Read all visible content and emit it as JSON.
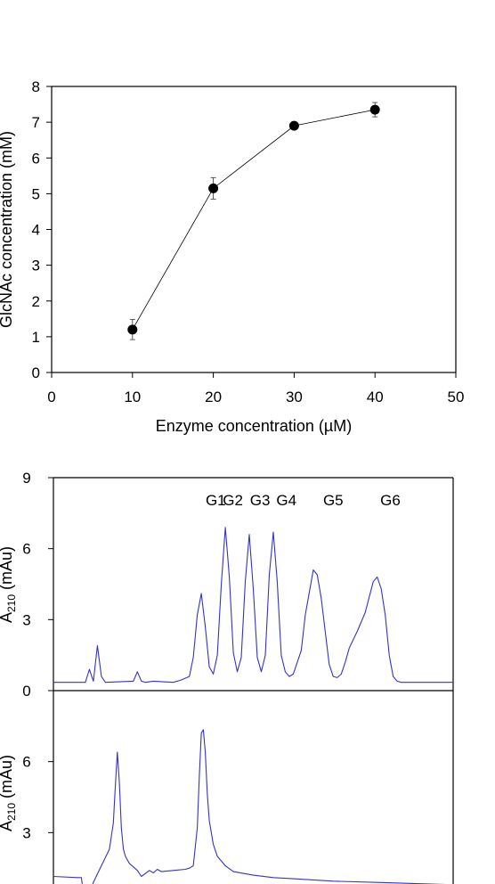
{
  "chart_data": [
    {
      "type": "scatter",
      "xlabel": "Enzyme concentration (µM)",
      "ylabel": "GlcNAc concentration (mM)",
      "xlim": [
        0,
        50
      ],
      "ylim": [
        0,
        8
      ],
      "xticks": [
        "0",
        "10",
        "20",
        "30",
        "40",
        "50"
      ],
      "yticks": [
        "0",
        "1",
        "2",
        "3",
        "4",
        "5",
        "6",
        "7",
        "8"
      ],
      "grid": false,
      "series": [
        {
          "x": [
            10,
            20,
            30,
            40
          ],
          "y": [
            1.2,
            5.15,
            6.9,
            7.35
          ],
          "err": [
            0.28,
            0.3,
            0.07,
            0.2
          ]
        }
      ],
      "colors": {
        "marker": "#000000",
        "line": "#000000"
      }
    },
    {
      "type": "line",
      "ylabel": "A210 (mAu)",
      "ylabel_main": "A",
      "ylabel_sub": "210",
      "ylabel_unit": " (mAu)",
      "ylim": [
        0,
        9
      ],
      "yticks": [
        "0",
        "3",
        "6",
        "9"
      ],
      "xlim": [
        0,
        100
      ],
      "grid": false,
      "peak_labels": [
        {
          "text": "G1",
          "x": 40.6
        },
        {
          "text": "G2",
          "x": 44.9
        },
        {
          "text": "G3",
          "x": 51.7
        },
        {
          "text": "G4",
          "x": 58.3
        },
        {
          "text": "G5",
          "x": 70.0
        },
        {
          "text": "G6",
          "x": 84.3
        }
      ],
      "series": [
        {
          "x": [
            0,
            8,
            9,
            10,
            11,
            12,
            13,
            20,
            21,
            22,
            23,
            25,
            30,
            32,
            34,
            35,
            36,
            37,
            38,
            39,
            40,
            41,
            42,
            43,
            44,
            45,
            46,
            47,
            48,
            49,
            50,
            51,
            52,
            53,
            54,
            55,
            56,
            57,
            58,
            59,
            60,
            62,
            63,
            65,
            66,
            67,
            68,
            69,
            70,
            71,
            72,
            73,
            74,
            76,
            78,
            80,
            81,
            82,
            83,
            84,
            85,
            86,
            87,
            88,
            89,
            90,
            93,
            100
          ],
          "y": [
            0.35,
            0.35,
            0.9,
            0.4,
            1.9,
            0.6,
            0.35,
            0.4,
            0.8,
            0.4,
            0.35,
            0.4,
            0.35,
            0.45,
            0.6,
            1.4,
            3.2,
            4.1,
            2.7,
            1.0,
            0.7,
            1.5,
            4.5,
            6.9,
            4.8,
            1.6,
            0.8,
            1.4,
            4.6,
            6.6,
            4.3,
            1.4,
            0.8,
            1.5,
            4.9,
            6.7,
            4.6,
            1.5,
            0.8,
            0.6,
            0.7,
            1.7,
            3.2,
            5.1,
            4.9,
            3.9,
            2.5,
            1.1,
            0.6,
            0.55,
            0.7,
            1.2,
            1.8,
            2.5,
            3.3,
            4.6,
            4.8,
            4.3,
            3.2,
            1.5,
            0.6,
            0.4,
            0.35,
            0.35,
            0.35,
            0.35,
            0.35,
            0.35
          ]
        }
      ],
      "colors": {
        "line": "#3333cc"
      }
    },
    {
      "type": "line",
      "ylabel": "A210 (mAu)",
      "ylabel_main": "A",
      "ylabel_sub": "210",
      "ylabel_unit": " (mAu)",
      "ylim": [
        0,
        9
      ],
      "yticks": [
        "3",
        "6"
      ],
      "xlim": [
        0,
        100
      ],
      "grid": false,
      "series": [
        {
          "x": [
            0,
            6,
            7,
            8,
            9,
            10,
            11,
            12,
            13,
            14,
            15,
            15.5,
            16,
            16.5,
            17,
            17.5,
            18,
            19,
            20,
            21,
            22,
            24,
            25,
            26,
            27,
            30,
            33,
            34,
            35,
            36,
            36.5,
            37,
            37.5,
            38,
            38.5,
            39,
            40,
            41,
            43,
            45,
            50,
            55,
            60,
            70,
            80,
            90,
            100
          ],
          "y": [
            1.15,
            1.1,
            1.1,
            -0.15,
            0.4,
            0.9,
            1.25,
            1.6,
            1.95,
            2.3,
            3.4,
            5.0,
            6.4,
            5.1,
            3.2,
            2.3,
            2.0,
            1.7,
            1.55,
            1.4,
            1.15,
            1.4,
            1.3,
            1.45,
            1.35,
            1.4,
            1.45,
            1.5,
            1.6,
            3.2,
            5.4,
            7.2,
            7.35,
            6.4,
            4.6,
            3.5,
            2.5,
            2.0,
            1.6,
            1.35,
            1.2,
            1.1,
            1.05,
            0.95,
            0.9,
            0.85,
            0.8
          ]
        }
      ],
      "colors": {
        "line": "#3333cc"
      }
    }
  ]
}
